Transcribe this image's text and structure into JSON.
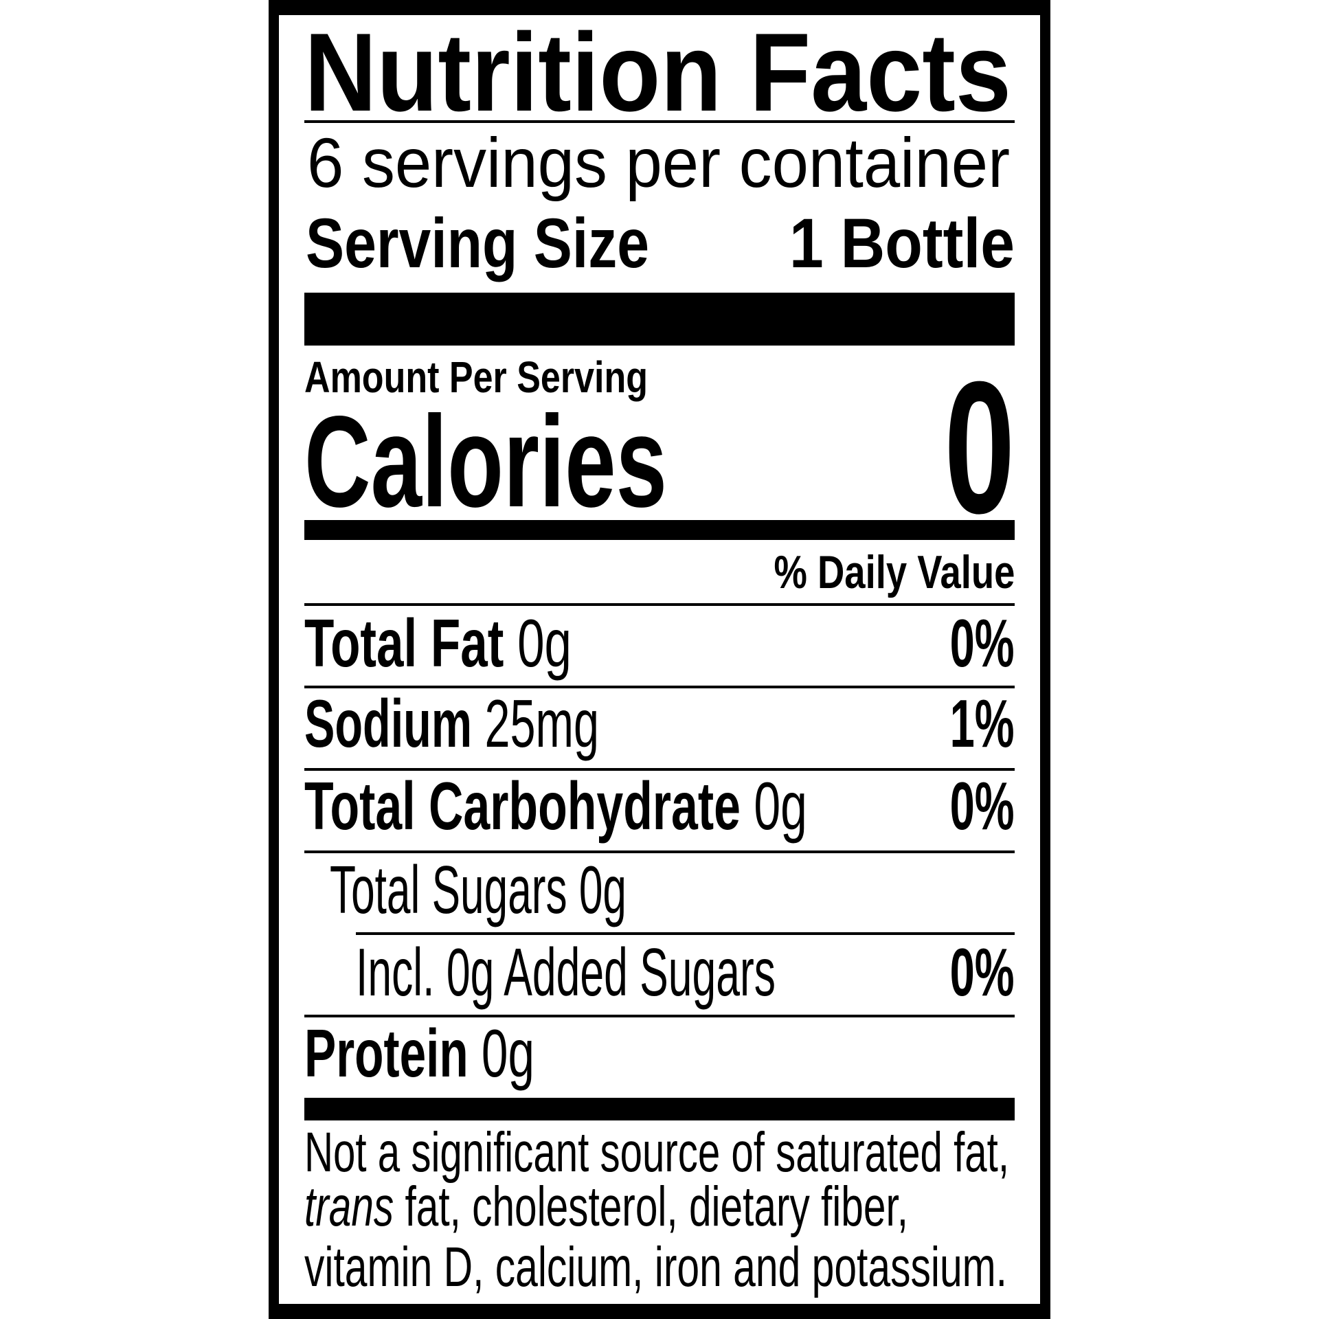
{
  "title": "Nutrition Facts",
  "servings_per_container": "6 servings per container",
  "serving_size": {
    "label": "Serving Size",
    "value": "1 Bottle"
  },
  "amount_per_serving": "Amount Per Serving",
  "calories": {
    "label": "Calories",
    "value": "0"
  },
  "daily_value_header": "% Daily Value",
  "nutrients": [
    {
      "name": "Total Fat",
      "amount": "0g",
      "dv": "0%"
    },
    {
      "name": "Sodium",
      "amount": "25mg",
      "dv": "1%"
    },
    {
      "name": "Total Carbohydrate",
      "amount": "0g",
      "dv": "0%"
    },
    {
      "name": "Total Sugars 0g"
    },
    {
      "name": "Incl. 0g Added Sugars",
      "dv": "0%"
    },
    {
      "name": "Protein",
      "amount": "0g"
    }
  ],
  "footnote": {
    "line1": "Not a significant source of saturated fat,",
    "line2_italic": "trans",
    "line2": " fat, cholesterol, dietary fiber,",
    "line3": "vitamin D, calcium, iron and potassium."
  }
}
